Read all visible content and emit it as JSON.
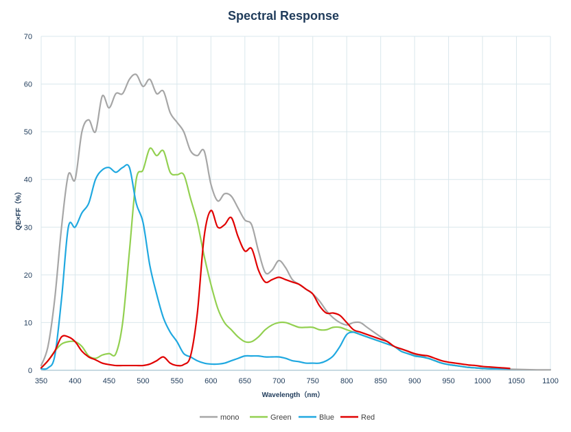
{
  "chart_data": {
    "type": "line",
    "title": "Spectral Response",
    "xlabel": "Wavelength（nm）",
    "ylabel": "QE×FF（%）",
    "xlim": [
      350,
      1100
    ],
    "ylim": [
      0,
      70
    ],
    "xticks": [
      350,
      400,
      450,
      500,
      550,
      600,
      650,
      700,
      750,
      800,
      850,
      900,
      950,
      1000,
      1050,
      1100
    ],
    "yticks": [
      0,
      10,
      20,
      30,
      40,
      50,
      60,
      70
    ],
    "grid": true,
    "legend_position": "bottom",
    "series": [
      {
        "name": "mono",
        "color": "#a6a6a6",
        "points": [
          [
            350,
            1
          ],
          [
            360,
            5
          ],
          [
            370,
            15
          ],
          [
            380,
            30
          ],
          [
            390,
            41
          ],
          [
            400,
            40
          ],
          [
            410,
            50
          ],
          [
            420,
            52.5
          ],
          [
            430,
            50
          ],
          [
            440,
            57.5
          ],
          [
            450,
            55
          ],
          [
            460,
            58
          ],
          [
            470,
            58
          ],
          [
            480,
            61
          ],
          [
            490,
            62
          ],
          [
            500,
            59.5
          ],
          [
            510,
            61
          ],
          [
            520,
            58
          ],
          [
            530,
            58.5
          ],
          [
            540,
            54
          ],
          [
            550,
            52
          ],
          [
            560,
            50
          ],
          [
            570,
            46
          ],
          [
            580,
            45
          ],
          [
            590,
            46
          ],
          [
            600,
            39
          ],
          [
            610,
            35.5
          ],
          [
            620,
            37
          ],
          [
            630,
            36.5
          ],
          [
            640,
            34
          ],
          [
            650,
            31.5
          ],
          [
            660,
            30.5
          ],
          [
            670,
            25
          ],
          [
            680,
            20.5
          ],
          [
            690,
            21
          ],
          [
            700,
            23
          ],
          [
            710,
            21.5
          ],
          [
            720,
            19
          ],
          [
            730,
            18
          ],
          [
            740,
            17
          ],
          [
            750,
            16
          ],
          [
            760,
            14.5
          ],
          [
            770,
            12.5
          ],
          [
            780,
            11
          ],
          [
            790,
            10
          ],
          [
            800,
            9.5
          ],
          [
            810,
            10
          ],
          [
            820,
            10
          ],
          [
            830,
            9
          ],
          [
            840,
            8
          ],
          [
            850,
            7
          ],
          [
            860,
            6
          ],
          [
            870,
            5
          ],
          [
            880,
            4.5
          ],
          [
            890,
            4
          ],
          [
            900,
            3.2
          ],
          [
            910,
            3
          ],
          [
            920,
            2.5
          ],
          [
            930,
            2
          ],
          [
            940,
            1.5
          ],
          [
            950,
            1.2
          ],
          [
            960,
            1
          ],
          [
            970,
            0.8
          ],
          [
            980,
            0.6
          ],
          [
            990,
            0.5
          ],
          [
            1000,
            0.4
          ],
          [
            1020,
            0.3
          ],
          [
            1050,
            0.2
          ],
          [
            1080,
            0.1
          ],
          [
            1100,
            0.1
          ]
        ]
      },
      {
        "name": "Green",
        "color": "#92d050",
        "points": [
          [
            350,
            0.5
          ],
          [
            360,
            2
          ],
          [
            370,
            4
          ],
          [
            380,
            5.5
          ],
          [
            390,
            6
          ],
          [
            400,
            6
          ],
          [
            410,
            5
          ],
          [
            420,
            3
          ],
          [
            430,
            2.5
          ],
          [
            440,
            3.2
          ],
          [
            450,
            3.5
          ],
          [
            460,
            3.5
          ],
          [
            470,
            10
          ],
          [
            480,
            25
          ],
          [
            490,
            40
          ],
          [
            500,
            42
          ],
          [
            510,
            46.5
          ],
          [
            520,
            45
          ],
          [
            530,
            46
          ],
          [
            540,
            41.5
          ],
          [
            550,
            41
          ],
          [
            560,
            41
          ],
          [
            570,
            36
          ],
          [
            580,
            31
          ],
          [
            590,
            24
          ],
          [
            600,
            18
          ],
          [
            610,
            13
          ],
          [
            620,
            10
          ],
          [
            630,
            8.5
          ],
          [
            640,
            7
          ],
          [
            650,
            6
          ],
          [
            660,
            6
          ],
          [
            670,
            7
          ],
          [
            680,
            8.5
          ],
          [
            690,
            9.5
          ],
          [
            700,
            10
          ],
          [
            710,
            10
          ],
          [
            720,
            9.5
          ],
          [
            730,
            9
          ],
          [
            740,
            9
          ],
          [
            750,
            9
          ],
          [
            760,
            8.5
          ],
          [
            770,
            8.5
          ],
          [
            780,
            9
          ],
          [
            790,
            9
          ],
          [
            800,
            8.5
          ],
          [
            810,
            8
          ],
          [
            820,
            7.5
          ],
          [
            830,
            7
          ],
          [
            840,
            6.5
          ],
          [
            850,
            6
          ],
          [
            860,
            5.5
          ],
          [
            870,
            5
          ],
          [
            880,
            4
          ],
          [
            890,
            3.5
          ],
          [
            900,
            3
          ],
          [
            910,
            2.8
          ],
          [
            920,
            2.5
          ],
          [
            930,
            2
          ],
          [
            940,
            1.5
          ],
          [
            950,
            1.2
          ],
          [
            960,
            1
          ],
          [
            970,
            0.8
          ],
          [
            980,
            0.6
          ],
          [
            990,
            0.5
          ],
          [
            1000,
            0.4
          ],
          [
            1020,
            0.3
          ],
          [
            1040,
            0.3
          ]
        ]
      },
      {
        "name": "Blue",
        "color": "#1fa8e0",
        "points": [
          [
            350,
            0.3
          ],
          [
            360,
            0.5
          ],
          [
            370,
            3
          ],
          [
            380,
            15
          ],
          [
            390,
            30
          ],
          [
            400,
            30
          ],
          [
            410,
            33
          ],
          [
            420,
            35
          ],
          [
            430,
            40
          ],
          [
            440,
            42
          ],
          [
            450,
            42.5
          ],
          [
            460,
            41.5
          ],
          [
            470,
            42.5
          ],
          [
            480,
            42.5
          ],
          [
            490,
            35
          ],
          [
            500,
            31
          ],
          [
            510,
            22
          ],
          [
            520,
            16
          ],
          [
            530,
            11
          ],
          [
            540,
            8
          ],
          [
            550,
            6
          ],
          [
            560,
            3.5
          ],
          [
            570,
            2.8
          ],
          [
            580,
            2
          ],
          [
            590,
            1.5
          ],
          [
            600,
            1.3
          ],
          [
            610,
            1.3
          ],
          [
            620,
            1.5
          ],
          [
            630,
            2
          ],
          [
            640,
            2.5
          ],
          [
            650,
            3
          ],
          [
            660,
            3
          ],
          [
            670,
            3
          ],
          [
            680,
            2.8
          ],
          [
            690,
            2.8
          ],
          [
            700,
            2.8
          ],
          [
            710,
            2.5
          ],
          [
            720,
            2
          ],
          [
            730,
            1.8
          ],
          [
            740,
            1.5
          ],
          [
            750,
            1.5
          ],
          [
            760,
            1.5
          ],
          [
            770,
            2
          ],
          [
            780,
            3
          ],
          [
            790,
            5
          ],
          [
            800,
            7.5
          ],
          [
            810,
            8
          ],
          [
            820,
            7.5
          ],
          [
            830,
            7
          ],
          [
            840,
            6.5
          ],
          [
            850,
            6
          ],
          [
            860,
            5.5
          ],
          [
            870,
            5
          ],
          [
            880,
            4
          ],
          [
            890,
            3.5
          ],
          [
            900,
            3
          ],
          [
            910,
            2.8
          ],
          [
            920,
            2.5
          ],
          [
            930,
            2
          ],
          [
            940,
            1.5
          ],
          [
            950,
            1.2
          ],
          [
            960,
            1
          ],
          [
            970,
            0.8
          ],
          [
            980,
            0.6
          ],
          [
            990,
            0.5
          ],
          [
            1000,
            0.4
          ],
          [
            1020,
            0.3
          ],
          [
            1040,
            0.3
          ]
        ]
      },
      {
        "name": "Red",
        "color": "#e00000",
        "points": [
          [
            350,
            0.5
          ],
          [
            360,
            2
          ],
          [
            370,
            4
          ],
          [
            380,
            7
          ],
          [
            390,
            7
          ],
          [
            400,
            6
          ],
          [
            410,
            4
          ],
          [
            420,
            2.8
          ],
          [
            430,
            2.2
          ],
          [
            440,
            1.5
          ],
          [
            450,
            1.2
          ],
          [
            460,
            1
          ],
          [
            470,
            1
          ],
          [
            480,
            1
          ],
          [
            490,
            1
          ],
          [
            500,
            1
          ],
          [
            510,
            1.3
          ],
          [
            520,
            2
          ],
          [
            530,
            2.8
          ],
          [
            540,
            1.5
          ],
          [
            550,
            1
          ],
          [
            560,
            1.2
          ],
          [
            570,
            3
          ],
          [
            580,
            12
          ],
          [
            590,
            28
          ],
          [
            600,
            33.5
          ],
          [
            610,
            30
          ],
          [
            620,
            30.5
          ],
          [
            630,
            32
          ],
          [
            640,
            28
          ],
          [
            650,
            25
          ],
          [
            660,
            25.5
          ],
          [
            670,
            21
          ],
          [
            680,
            18.5
          ],
          [
            690,
            19
          ],
          [
            700,
            19.5
          ],
          [
            710,
            19
          ],
          [
            720,
            18.5
          ],
          [
            730,
            18
          ],
          [
            740,
            17
          ],
          [
            750,
            16
          ],
          [
            760,
            13.5
          ],
          [
            770,
            12
          ],
          [
            780,
            12
          ],
          [
            790,
            11.5
          ],
          [
            800,
            10
          ],
          [
            810,
            8.5
          ],
          [
            820,
            8
          ],
          [
            830,
            7.5
          ],
          [
            840,
            7
          ],
          [
            850,
            6.5
          ],
          [
            860,
            6
          ],
          [
            870,
            5
          ],
          [
            880,
            4.5
          ],
          [
            890,
            4
          ],
          [
            900,
            3.5
          ],
          [
            910,
            3.2
          ],
          [
            920,
            3
          ],
          [
            930,
            2.5
          ],
          [
            940,
            2
          ],
          [
            950,
            1.7
          ],
          [
            960,
            1.5
          ],
          [
            970,
            1.3
          ],
          [
            980,
            1.1
          ],
          [
            990,
            1
          ],
          [
            1000,
            0.8
          ],
          [
            1010,
            0.7
          ],
          [
            1020,
            0.6
          ],
          [
            1030,
            0.5
          ],
          [
            1040,
            0.4
          ]
        ]
      }
    ]
  }
}
